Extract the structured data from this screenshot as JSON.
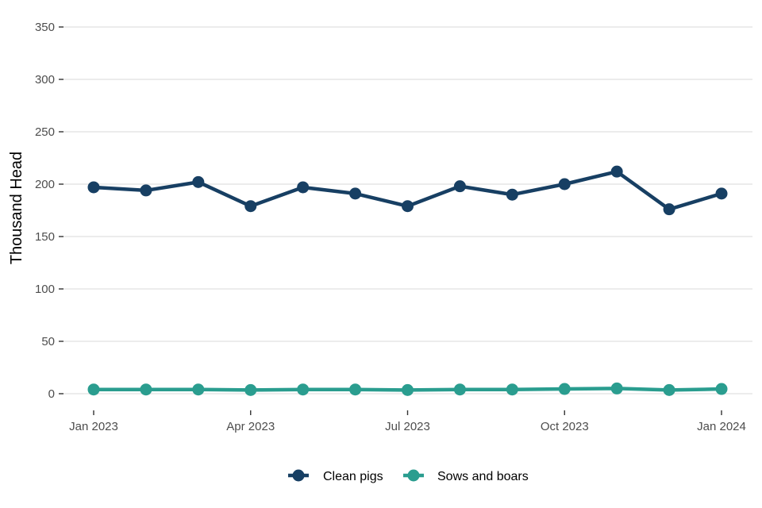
{
  "chart_data": {
    "type": "line",
    "title": "",
    "xlabel": "",
    "ylabel": "Thousand Head",
    "ylim": [
      0,
      350
    ],
    "yticks": [
      0,
      50,
      100,
      150,
      200,
      250,
      300,
      350
    ],
    "x": [
      "2023-01",
      "2023-02",
      "2023-03",
      "2023-04",
      "2023-05",
      "2023-06",
      "2023-07",
      "2023-08",
      "2023-09",
      "2023-10",
      "2023-11",
      "2023-12",
      "2024-01"
    ],
    "xticks": [
      {
        "x": "2023-01",
        "label": "Jan 2023"
      },
      {
        "x": "2023-04",
        "label": "Apr 2023"
      },
      {
        "x": "2023-07",
        "label": "Jul 2023"
      },
      {
        "x": "2023-10",
        "label": "Oct 2023"
      },
      {
        "x": "2024-01",
        "label": "Jan 2024"
      }
    ],
    "grid": true,
    "legend_position": "bottom",
    "series": [
      {
        "name": "Clean pigs",
        "color": "#173f63",
        "values": [
          197,
          194,
          202,
          179,
          197,
          191,
          179,
          198,
          190,
          200,
          212,
          176,
          191
        ]
      },
      {
        "name": "Sows and boars",
        "color": "#2a9d8f",
        "values": [
          4,
          4,
          4,
          3.5,
          4,
          4,
          3.5,
          4,
          4,
          4.5,
          5,
          3.5,
          4.5
        ]
      }
    ]
  }
}
